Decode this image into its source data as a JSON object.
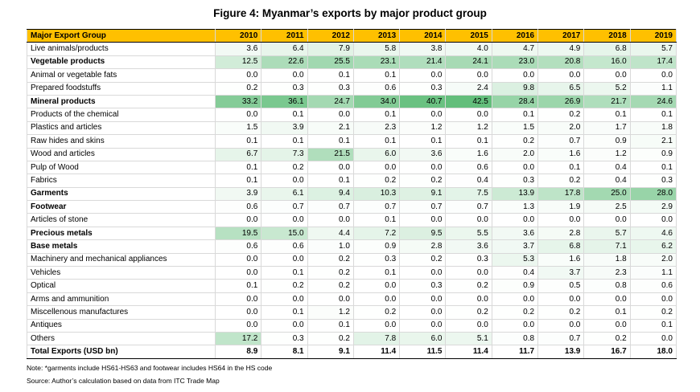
{
  "title": "Figure 4: Myanmar’s exports by major product group",
  "table": {
    "header_label": "Major Export Group",
    "years": [
      "2010",
      "2011",
      "2012",
      "2013",
      "2014",
      "2015",
      "2016",
      "2017",
      "2018",
      "2019"
    ],
    "rows": [
      {
        "name": "Live animals/products",
        "bold": false,
        "values": [
          "3.6",
          "6.4",
          "7.9",
          "5.8",
          "3.8",
          "4.0",
          "4.7",
          "4.9",
          "6.8",
          "5.7"
        ]
      },
      {
        "name": "Vegetable products",
        "bold": true,
        "values": [
          "12.5",
          "22.6",
          "25.5",
          "23.1",
          "21.4",
          "24.1",
          "23.0",
          "20.8",
          "16.0",
          "17.4"
        ]
      },
      {
        "name": "Animal or vegetable fats",
        "bold": false,
        "values": [
          "0.0",
          "0.0",
          "0.1",
          "0.1",
          "0.0",
          "0.0",
          "0.0",
          "0.0",
          "0.0",
          "0.0"
        ]
      },
      {
        "name": "Prepared foodstuffs",
        "bold": false,
        "values": [
          "0.2",
          "0.3",
          "0.3",
          "0.6",
          "0.3",
          "2.4",
          "9.8",
          "6.5",
          "5.2",
          "1.1"
        ]
      },
      {
        "name": "Mineral products",
        "bold": true,
        "values": [
          "33.2",
          "36.1",
          "24.7",
          "34.0",
          "40.7",
          "42.5",
          "28.4",
          "26.9",
          "21.7",
          "24.6"
        ]
      },
      {
        "name": "Products of the chemical",
        "bold": false,
        "values": [
          "0.0",
          "0.1",
          "0.0",
          "0.1",
          "0.0",
          "0.0",
          "0.1",
          "0.2",
          "0.1",
          "0.1"
        ]
      },
      {
        "name": "Plastics and articles",
        "bold": false,
        "values": [
          "1.5",
          "3.9",
          "2.1",
          "2.3",
          "1.2",
          "1.2",
          "1.5",
          "2.0",
          "1.7",
          "1.8"
        ]
      },
      {
        "name": "Raw hides and skins",
        "bold": false,
        "values": [
          "0.1",
          "0.1",
          "0.1",
          "0.1",
          "0.1",
          "0.1",
          "0.2",
          "0.7",
          "0.9",
          "2.1"
        ]
      },
      {
        "name": "Wood and articles",
        "bold": false,
        "values": [
          "6.7",
          "7.3",
          "21.5",
          "6.0",
          "3.6",
          "1.6",
          "2.0",
          "1.6",
          "1.2",
          "0.9"
        ]
      },
      {
        "name": "Pulp of Wood",
        "bold": false,
        "values": [
          "0.1",
          "0.2",
          "0.0",
          "0.0",
          "0.0",
          "0.6",
          "0.0",
          "0.1",
          "0.4",
          "0.1"
        ]
      },
      {
        "name": "Fabrics",
        "bold": false,
        "values": [
          "0.1",
          "0.0",
          "0.1",
          "0.2",
          "0.2",
          "0.4",
          "0.3",
          "0.2",
          "0.4",
          "0.3"
        ]
      },
      {
        "name": "Garments",
        "bold": true,
        "values": [
          "3.9",
          "6.1",
          "9.4",
          "10.3",
          "9.1",
          "7.5",
          "13.9",
          "17.8",
          "25.0",
          "28.0"
        ]
      },
      {
        "name": "Footwear",
        "bold": true,
        "values": [
          "0.6",
          "0.7",
          "0.7",
          "0.7",
          "0.7",
          "0.7",
          "1.3",
          "1.9",
          "2.5",
          "2.9"
        ]
      },
      {
        "name": "Articles of stone",
        "bold": false,
        "values": [
          "0.0",
          "0.0",
          "0.0",
          "0.1",
          "0.0",
          "0.0",
          "0.0",
          "0.0",
          "0.0",
          "0.0"
        ]
      },
      {
        "name": "Precious metals",
        "bold": true,
        "values": [
          "19.5",
          "15.0",
          "4.4",
          "7.2",
          "9.5",
          "5.5",
          "3.6",
          "2.8",
          "5.7",
          "4.6"
        ]
      },
      {
        "name": "Base metals",
        "bold": true,
        "values": [
          "0.6",
          "0.6",
          "1.0",
          "0.9",
          "2.8",
          "3.6",
          "3.7",
          "6.8",
          "7.1",
          "6.2"
        ]
      },
      {
        "name": "Machinery and mechanical appliances",
        "bold": false,
        "values": [
          "0.0",
          "0.0",
          "0.2",
          "0.3",
          "0.2",
          "0.3",
          "5.3",
          "1.6",
          "1.8",
          "2.0"
        ]
      },
      {
        "name": "Vehicles",
        "bold": false,
        "values": [
          "0.0",
          "0.1",
          "0.2",
          "0.1",
          "0.0",
          "0.0",
          "0.4",
          "3.7",
          "2.3",
          "1.1"
        ]
      },
      {
        "name": "Optical",
        "bold": false,
        "values": [
          "0.1",
          "0.2",
          "0.2",
          "0.0",
          "0.3",
          "0.2",
          "0.9",
          "0.5",
          "0.8",
          "0.6"
        ]
      },
      {
        "name": "Arms and ammunition",
        "bold": false,
        "values": [
          "0.0",
          "0.0",
          "0.0",
          "0.0",
          "0.0",
          "0.0",
          "0.0",
          "0.0",
          "0.0",
          "0.0"
        ]
      },
      {
        "name": "Miscellenous manufactures",
        "bold": false,
        "values": [
          "0.0",
          "0.1",
          "1.2",
          "0.2",
          "0.0",
          "0.2",
          "0.2",
          "0.2",
          "0.1",
          "0.2"
        ]
      },
      {
        "name": "Antiques",
        "bold": false,
        "values": [
          "0.0",
          "0.0",
          "0.1",
          "0.0",
          "0.0",
          "0.0",
          "0.0",
          "0.0",
          "0.0",
          "0.1"
        ]
      },
      {
        "name": "Others",
        "bold": false,
        "values": [
          "17.2",
          "0.3",
          "0.2",
          "7.8",
          "6.0",
          "5.1",
          "0.8",
          "0.7",
          "0.2",
          "0.0"
        ]
      }
    ],
    "total": {
      "name": "Total Exports (USD bn)",
      "values": [
        "8.9",
        "8.1",
        "9.1",
        "11.4",
        "11.5",
        "11.4",
        "11.7",
        "13.9",
        "16.7",
        "18.0"
      ]
    },
    "heatmap_colors": {
      "low": "#ffffff",
      "high": "#63be7b",
      "max_value": 42.5
    }
  },
  "notes": {
    "note1": "Note: *garments include HS61-HS63 and footwear includes HS64 in the HS code",
    "note2": "Source: Author’s calculation based on data from ITC Trade Map"
  }
}
